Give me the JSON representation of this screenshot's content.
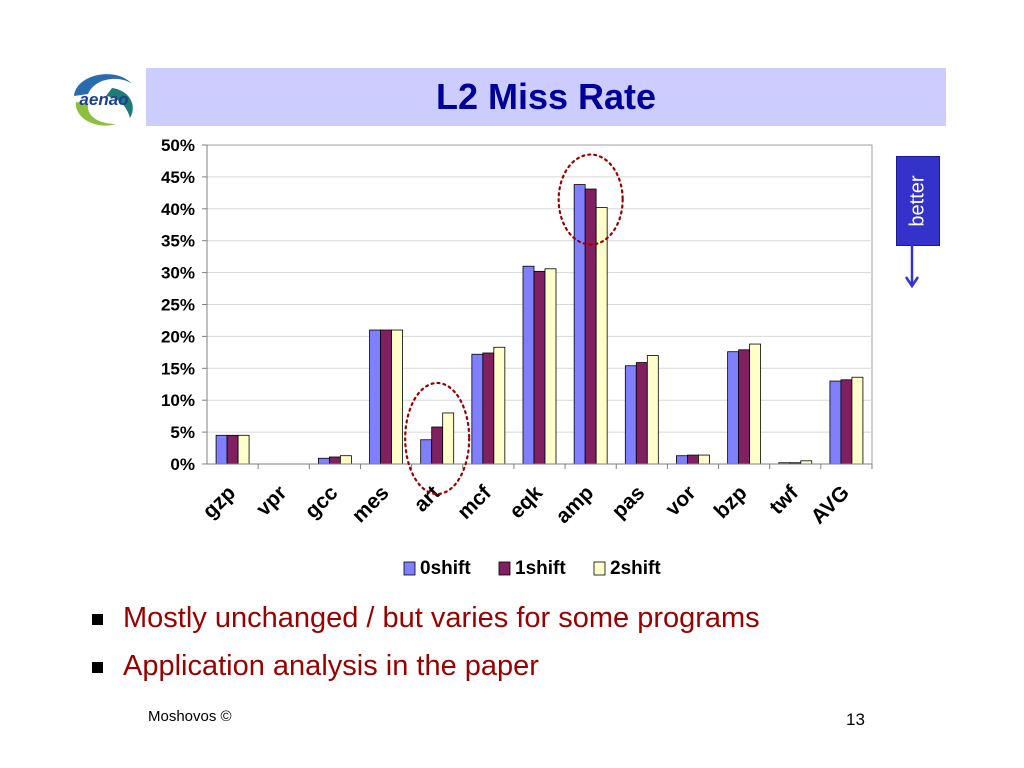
{
  "slide": {
    "title": "L2 Miss Rate",
    "logo_text": "aenao",
    "better_label": "better",
    "bullets": [
      "Mostly unchanged / but varies for some programs",
      "Application analysis in the paper"
    ],
    "footer_left": "Moshovos ©",
    "page_number": "13"
  },
  "colors": {
    "title_bg": "#ccccff",
    "title_text": "#000099",
    "bullet_text": "#990000",
    "better_box": "#3333cc",
    "highlight_circle": "#990000"
  },
  "chart_data": {
    "type": "bar",
    "categories": [
      "gzp",
      "vpr",
      "gcc",
      "mes",
      "art",
      "mcf",
      "eqk",
      "amp",
      "pas",
      "vor",
      "bzp",
      "twf",
      "AVG"
    ],
    "series": [
      {
        "name": "0shift",
        "color": "#8080ff",
        "values": [
          4.5,
          0,
          0.9,
          21,
          3.8,
          17.2,
          31,
          43.8,
          15.4,
          1.3,
          17.6,
          0.2,
          13
        ]
      },
      {
        "name": "1shift",
        "color": "#802060",
        "values": [
          4.5,
          0,
          1.1,
          21,
          5.8,
          17.4,
          30.2,
          43.1,
          15.9,
          1.4,
          17.9,
          0.2,
          13.2
        ]
      },
      {
        "name": "2shift",
        "color": "#ffffcc",
        "values": [
          4.5,
          0,
          1.3,
          21,
          8,
          18.3,
          30.6,
          40.2,
          17,
          1.4,
          18.8,
          0.5,
          13.6
        ]
      }
    ],
    "ylim": [
      0,
      50
    ],
    "yticks": [
      "0%",
      "5%",
      "10%",
      "15%",
      "20%",
      "25%",
      "30%",
      "35%",
      "40%",
      "45%",
      "50%"
    ],
    "grid": true,
    "legend_position": "bottom",
    "annotations": [
      {
        "type": "dotted-ellipse",
        "category": "art"
      },
      {
        "type": "dotted-ellipse",
        "category": "amp"
      },
      {
        "type": "arrow-down",
        "label": "better"
      }
    ]
  }
}
